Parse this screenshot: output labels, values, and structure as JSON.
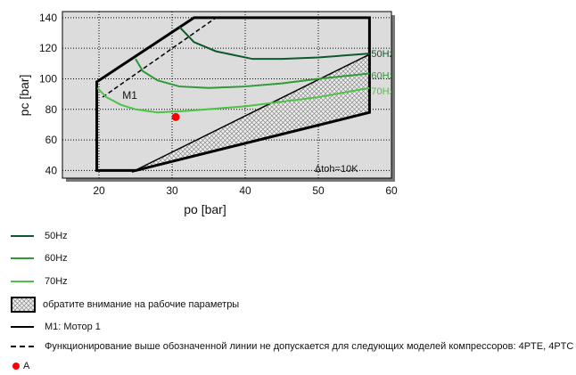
{
  "chart_data": {
    "type": "line",
    "xlabel": "po [bar]",
    "ylabel": "pc [bar]",
    "xlim": [
      15,
      60
    ],
    "ylim": [
      35,
      144
    ],
    "xticks": [
      20,
      30,
      40,
      50,
      60
    ],
    "yticks": [
      40,
      60,
      80,
      100,
      120,
      140
    ],
    "grid": true,
    "annotation": "Δtoh=10K",
    "envelope_label": "M1",
    "envelope": [
      [
        19.7,
        40
      ],
      [
        19.7,
        98
      ],
      [
        33,
        140
      ],
      [
        57,
        140
      ],
      [
        57,
        78
      ],
      [
        25,
        40
      ]
    ],
    "hatched_region": [
      [
        24.5,
        39
      ],
      [
        57,
        116
      ],
      [
        57,
        78
      ]
    ],
    "dashed_limit": [
      [
        20.5,
        88
      ],
      [
        36,
        140
      ]
    ],
    "series": [
      {
        "name": "50Hz",
        "color": "#0b5a2b",
        "points": [
          [
            31,
            134
          ],
          [
            33,
            124
          ],
          [
            36,
            118
          ],
          [
            41,
            113
          ],
          [
            45,
            113
          ],
          [
            50,
            114
          ],
          [
            57,
            116.5
          ]
        ]
      },
      {
        "name": "60Hz",
        "color": "#2f9a36",
        "points": [
          [
            25,
            113
          ],
          [
            26,
            105
          ],
          [
            28,
            99
          ],
          [
            31,
            95
          ],
          [
            35,
            94
          ],
          [
            40,
            95
          ],
          [
            45,
            97
          ],
          [
            50,
            100
          ],
          [
            57,
            103.5
          ]
        ]
      },
      {
        "name": "70Hz",
        "color": "#4cc247",
        "points": [
          [
            19.8,
            94
          ],
          [
            21,
            88
          ],
          [
            23,
            83
          ],
          [
            25,
            80
          ],
          [
            28,
            78
          ],
          [
            32,
            79
          ],
          [
            40,
            82
          ],
          [
            50,
            88
          ],
          [
            57,
            94
          ]
        ]
      }
    ],
    "point": {
      "name": "A",
      "x": 30.5,
      "y": 75,
      "color": "#ff0000"
    }
  },
  "legend": [
    {
      "label": "50Hz",
      "kind": "line",
      "color": "#0b5a2b"
    },
    {
      "label": "60Hz",
      "kind": "line",
      "color": "#2f9a36"
    },
    {
      "label": "70Hz",
      "kind": "line",
      "color": "#4cc247"
    },
    {
      "label": "обратите внимание на рабочие параметры",
      "kind": "hatch"
    },
    {
      "label": "M1: Мотор 1",
      "kind": "line",
      "color": "#000000"
    },
    {
      "label": "Функционирование выше обозначенной линии не допускается для следующих моделей компрессоров: 4PTE, 4PTC",
      "kind": "dash"
    },
    {
      "label": "A",
      "kind": "dot",
      "color": "#ff0000"
    }
  ]
}
